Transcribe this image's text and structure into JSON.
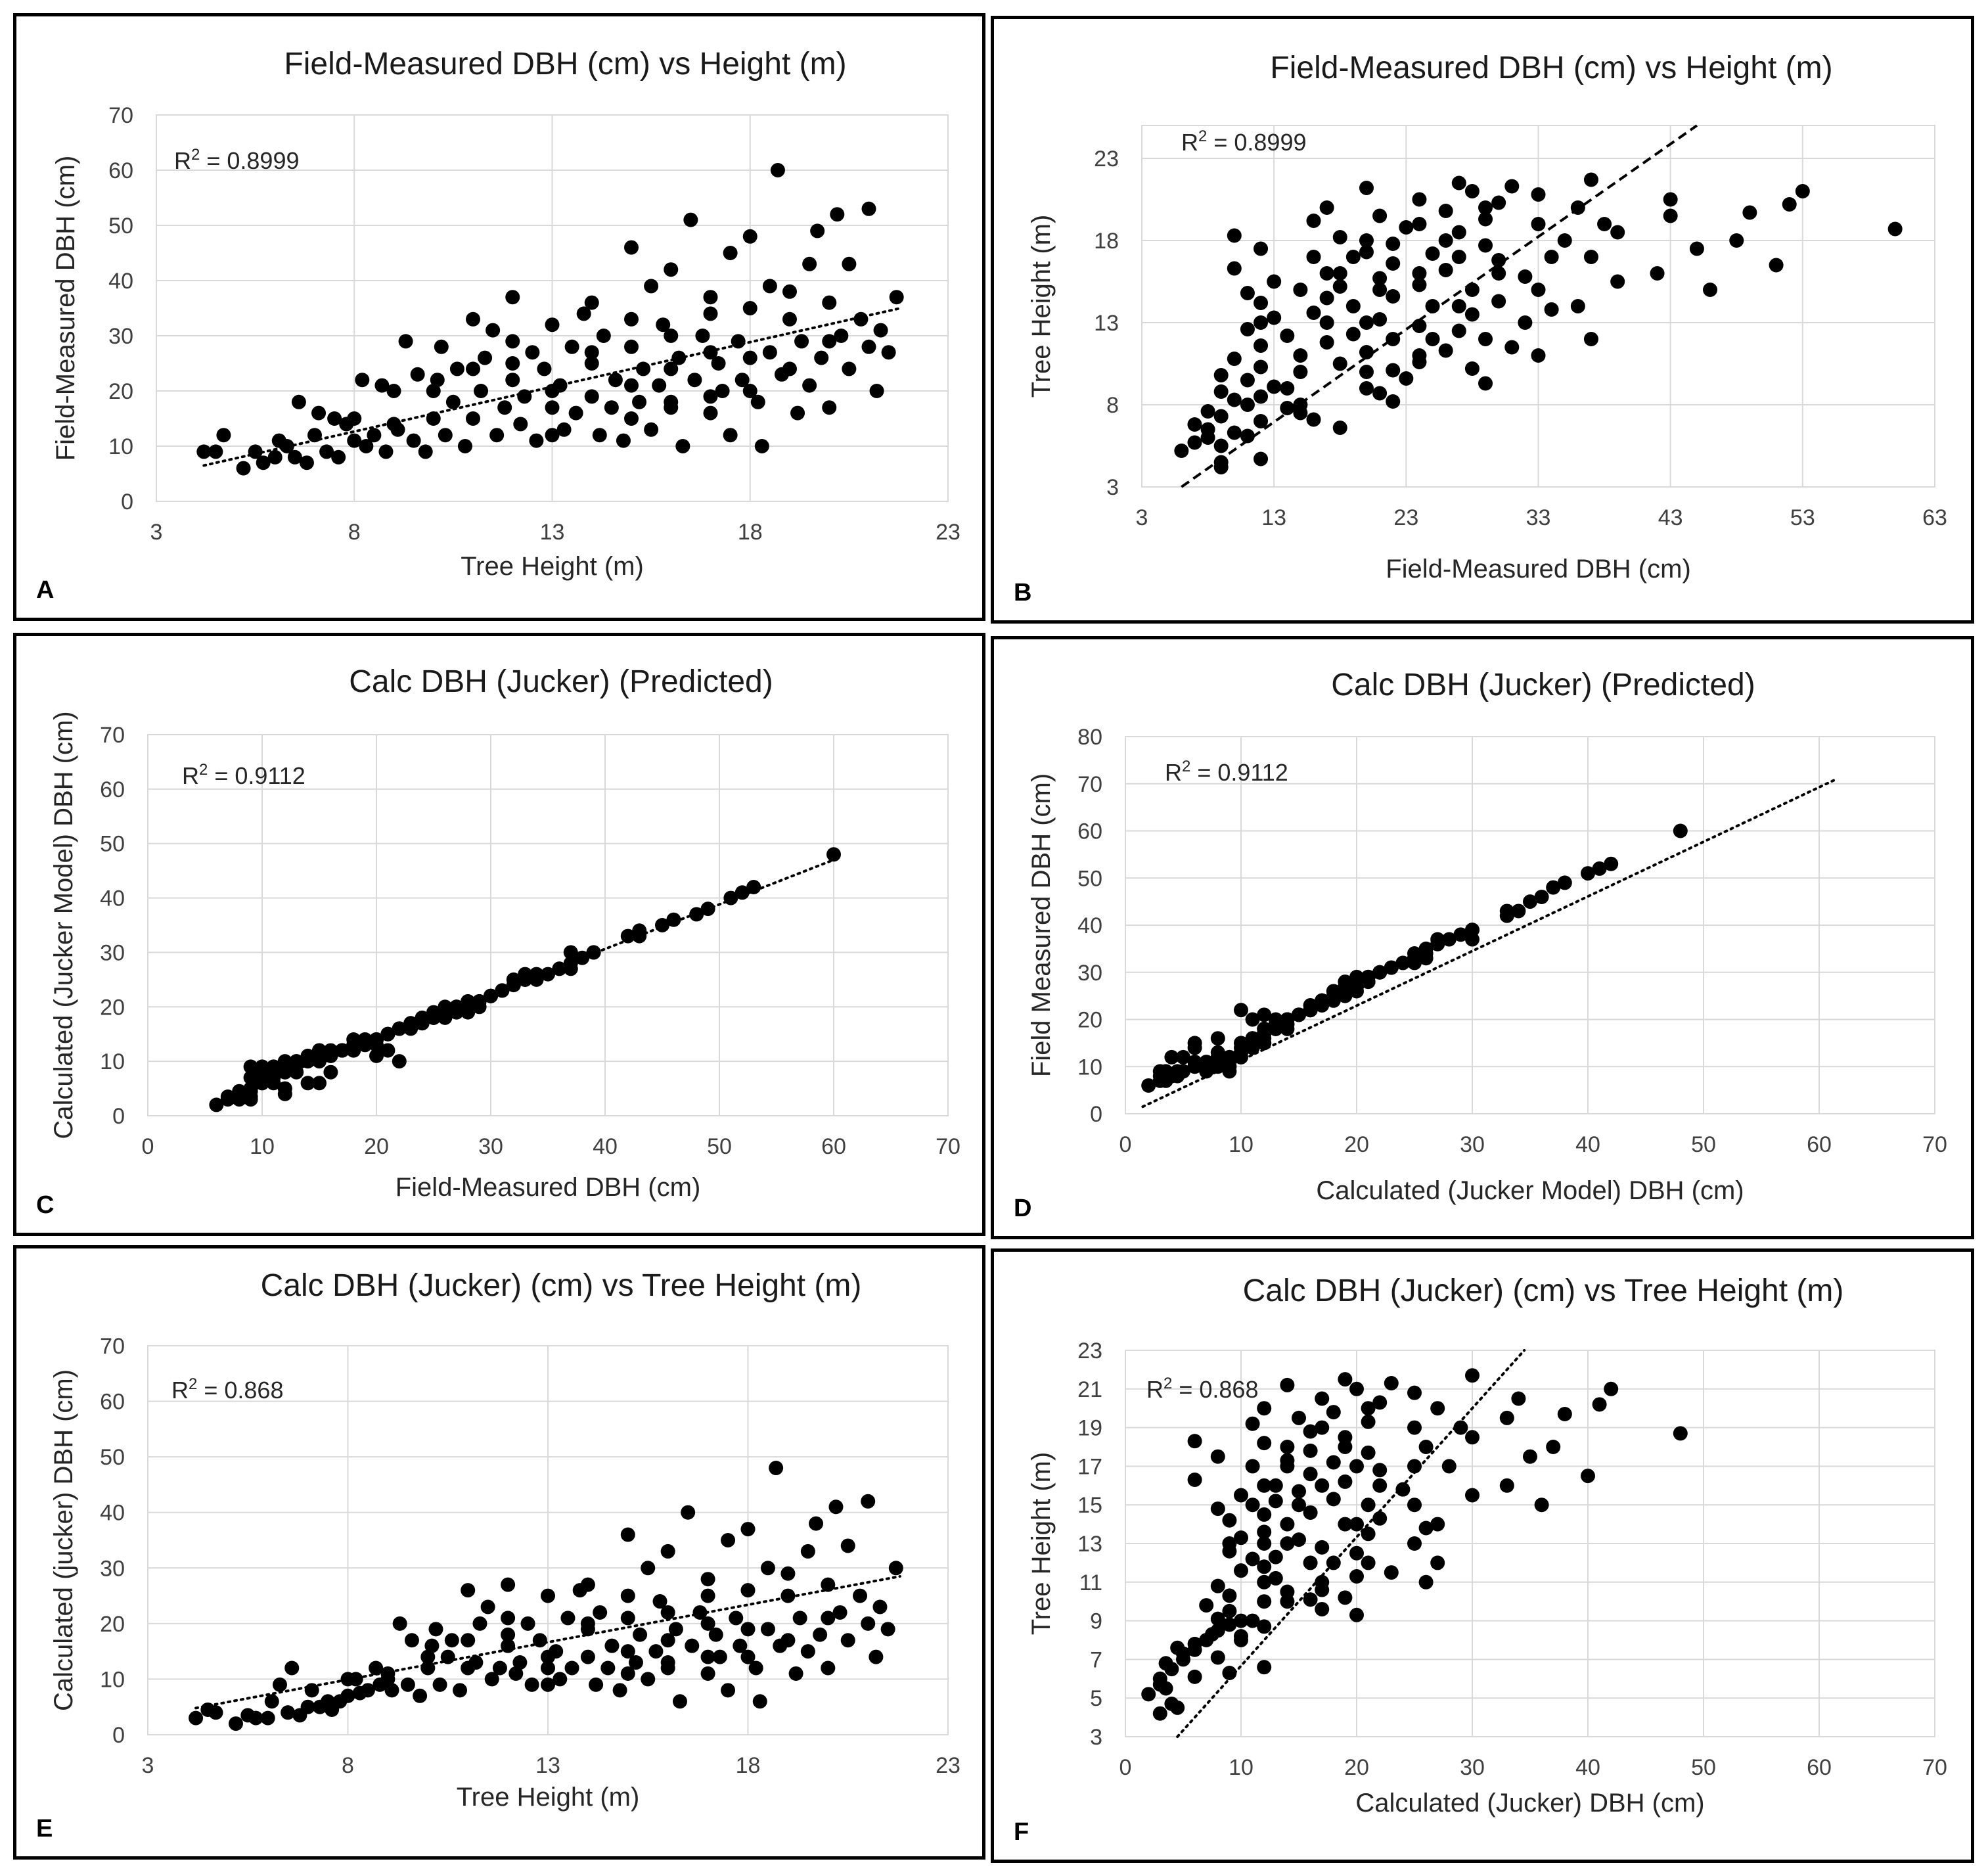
{
  "figure": {
    "panels": [
      "A",
      "B",
      "C",
      "D",
      "E",
      "F"
    ]
  },
  "chart_data": [
    {
      "panel_label": "A",
      "type": "scatter",
      "title": "Field-Measured DBH (cm) vs Height (m)",
      "xlabel": "Tree Height (m)",
      "ylabel": "Field-Measured DBH (cm)",
      "xlim": [
        3,
        23
      ],
      "ylim": [
        0,
        70
      ],
      "xticks": [
        3,
        8,
        13,
        18,
        23
      ],
      "yticks": [
        0,
        10,
        20,
        30,
        40,
        50,
        60,
        70
      ],
      "r2_label": "R",
      "r2_sup": "2",
      "r2_value": " = 0.8999",
      "grid": true,
      "trendline": {
        "style": "dotted",
        "x": [
          4.2,
          21.8
        ],
        "y": [
          6.5,
          35
        ]
      },
      "x_col": "height",
      "y_col": "field_dbh"
    },
    {
      "panel_label": "B",
      "type": "scatter",
      "title": "Field-Measured DBH (cm) vs Height (m)",
      "xlabel": "Field-Measured DBH (cm)",
      "ylabel": "Tree Height (m)",
      "xlim": [
        3,
        63
      ],
      "ylim": [
        3,
        25
      ],
      "xticks": [
        3,
        13,
        23,
        33,
        43,
        53,
        63
      ],
      "yticks": [
        3,
        8,
        13,
        18,
        23
      ],
      "r2_label": "R",
      "r2_sup": "2",
      "r2_value": " = 0.8999",
      "grid": true,
      "trendline": {
        "style": "dashed",
        "x": [
          6,
          45
        ],
        "y": [
          3,
          25
        ]
      },
      "x_col": "field_dbh",
      "y_col": "height"
    },
    {
      "panel_label": "C",
      "type": "scatter",
      "title": "Calc DBH (Jucker) (Predicted)",
      "xlabel": "Field-Measured DBH (cm)",
      "ylabel": "Calculated (Jucker Model) DBH (cm)",
      "xlim": [
        0,
        70
      ],
      "ylim": [
        0,
        70
      ],
      "xticks": [
        0,
        10,
        20,
        30,
        40,
        50,
        60,
        70
      ],
      "yticks": [
        0,
        10,
        20,
        30,
        40,
        50,
        60,
        70
      ],
      "r2_label": "R",
      "r2_sup": "2",
      "r2_value": " = 0.9112",
      "grid": true,
      "trendline": {
        "style": "dotted",
        "x": [
          6,
          60
        ],
        "y": [
          2.8,
          47
        ]
      },
      "x_col": "field_dbh",
      "y_col": "calc_dbh"
    },
    {
      "panel_label": "D",
      "type": "scatter",
      "title": "Calc DBH (Jucker) (Predicted)",
      "xlabel": "Calculated (Jucker Model) DBH (cm)",
      "ylabel": "Field Measured  DBH (cm)",
      "xlim": [
        0,
        70
      ],
      "ylim": [
        0,
        80
      ],
      "xticks": [
        0,
        10,
        20,
        30,
        40,
        50,
        60,
        70
      ],
      "yticks": [
        0,
        10,
        20,
        30,
        40,
        50,
        60,
        70,
        80
      ],
      "r2_label": "R",
      "r2_sup": "2",
      "r2_value": " = 0.9112",
      "grid": true,
      "trendline": {
        "style": "dotted",
        "x": [
          1.5,
          61.5
        ],
        "y": [
          1.5,
          71
        ]
      },
      "x_col": "calc_dbh",
      "y_col": "field_dbh"
    },
    {
      "panel_label": "E",
      "type": "scatter",
      "title": "Calc DBH (Jucker) (cm) vs Tree Height (m)",
      "xlabel": "Tree Height (m)",
      "ylabel": "Calculated (jucker) DBH (cm)",
      "xlim": [
        3,
        23
      ],
      "ylim": [
        0,
        70
      ],
      "xticks": [
        3,
        8,
        13,
        18,
        23
      ],
      "yticks": [
        0,
        10,
        20,
        30,
        40,
        50,
        60,
        70
      ],
      "r2_label": "R",
      "r2_sup": "2",
      "r2_value": " = 0.868",
      "grid": true,
      "trendline": {
        "style": "dotted",
        "x": [
          4.2,
          21.8
        ],
        "y": [
          4.8,
          28.5
        ]
      },
      "x_col": "height",
      "y_col": "calc_dbh"
    },
    {
      "panel_label": "F",
      "type": "scatter",
      "title": "Calc DBH (Jucker) (cm) vs Tree Height (m)",
      "xlabel": "Calculated (Jucker) DBH (cm)",
      "ylabel": "Tree Height (m)",
      "xlim": [
        0,
        70
      ],
      "ylim": [
        3,
        23
      ],
      "xticks": [
        0,
        10,
        20,
        30,
        40,
        50,
        60,
        70
      ],
      "yticks": [
        3,
        5,
        7,
        9,
        11,
        13,
        15,
        17,
        19,
        21,
        23
      ],
      "r2_label": "R",
      "r2_sup": "2",
      "r2_value": " = 0.868",
      "grid": true,
      "trendline": {
        "style": "dotted",
        "x": [
          4.5,
          34.5
        ],
        "y": [
          3,
          23
        ]
      },
      "x_col": "calc_dbh",
      "y_col": "height"
    }
  ],
  "trees": {
    "columns": [
      "height",
      "field_dbh",
      "calc_dbh"
    ],
    "rows": [
      [
        4.2,
        9,
        3
      ],
      [
        4.5,
        9,
        4.5
      ],
      [
        4.7,
        12,
        4
      ],
      [
        5.2,
        6,
        2
      ],
      [
        5.5,
        9,
        3.5
      ],
      [
        5.7,
        7,
        3
      ],
      [
        6,
        8,
        3
      ],
      [
        6.1,
        11,
        6
      ],
      [
        6.3,
        10,
        9
      ],
      [
        6.5,
        8,
        4
      ],
      [
        6.6,
        18,
        12
      ],
      [
        6.8,
        7,
        3.5
      ],
      [
        7,
        12,
        5
      ],
      [
        7.1,
        16,
        8
      ],
      [
        7.3,
        9,
        5
      ],
      [
        7.5,
        15,
        6
      ],
      [
        7.6,
        8,
        4.5
      ],
      [
        7.8,
        14,
        6
      ],
      [
        8,
        11,
        7
      ],
      [
        8.2,
        22,
        10
      ],
      [
        8.3,
        10,
        7.5
      ],
      [
        8.5,
        12,
        8
      ],
      [
        8.7,
        21,
        12
      ],
      [
        8.8,
        9,
        9
      ],
      [
        9,
        20,
        11
      ],
      [
        9.1,
        13,
        8
      ],
      [
        9.3,
        29,
        20
      ],
      [
        9.5,
        11,
        9
      ],
      [
        9.6,
        23,
        17
      ],
      [
        9.8,
        9,
        7
      ],
      [
        10,
        15,
        12
      ],
      [
        10.1,
        22,
        16
      ],
      [
        10.2,
        28,
        19
      ],
      [
        10.3,
        12,
        9
      ],
      [
        10.5,
        18,
        14
      ],
      [
        10.6,
        24,
        17
      ],
      [
        10.8,
        10,
        8
      ],
      [
        11,
        33,
        26
      ],
      [
        11,
        15,
        12
      ],
      [
        11.2,
        20,
        13
      ],
      [
        11.3,
        26,
        20
      ],
      [
        11.5,
        31,
        23
      ],
      [
        11.6,
        12,
        10
      ],
      [
        11.8,
        17,
        12
      ],
      [
        12,
        22,
        16
      ],
      [
        12,
        37,
        27
      ],
      [
        12.2,
        14,
        11
      ],
      [
        12.3,
        19,
        13
      ],
      [
        12.5,
        27,
        20
      ],
      [
        12.6,
        11,
        9
      ],
      [
        12.8,
        24,
        17
      ],
      [
        13,
        32,
        25
      ],
      [
        13,
        17,
        12
      ],
      [
        13.2,
        21,
        15
      ],
      [
        13.3,
        13,
        10
      ],
      [
        13.5,
        28,
        21
      ],
      [
        13.6,
        16,
        12
      ],
      [
        13.8,
        34,
        26
      ],
      [
        14,
        19,
        14
      ],
      [
        14,
        25,
        19
      ],
      [
        14.2,
        12,
        9
      ],
      [
        14.3,
        30,
        22
      ],
      [
        14.5,
        17,
        12
      ],
      [
        14.6,
        22,
        16
      ],
      [
        14.8,
        11,
        8
      ],
      [
        15,
        46,
        36
      ],
      [
        15,
        28,
        21
      ],
      [
        15.2,
        18,
        13
      ],
      [
        15.3,
        24,
        18
      ],
      [
        15.5,
        39,
        30
      ],
      [
        15.5,
        13,
        10
      ],
      [
        15.7,
        21,
        15
      ],
      [
        15.8,
        32,
        24
      ],
      [
        16,
        17,
        12
      ],
      [
        16,
        42,
        33
      ],
      [
        16.2,
        26,
        19
      ],
      [
        16.3,
        10,
        6
      ],
      [
        16.5,
        51,
        40
      ],
      [
        16.6,
        22,
        16
      ],
      [
        16.8,
        30,
        22
      ],
      [
        17,
        16,
        11
      ],
      [
        17,
        37,
        28
      ],
      [
        17.2,
        25,
        18
      ],
      [
        17.3,
        20,
        14
      ],
      [
        17.5,
        45,
        35
      ],
      [
        17.5,
        12,
        8
      ],
      [
        17.7,
        29,
        21
      ],
      [
        17.8,
        22,
        16
      ],
      [
        18,
        48,
        37
      ],
      [
        18,
        35,
        26
      ],
      [
        18.2,
        18,
        12
      ],
      [
        18.3,
        10,
        6
      ],
      [
        18.5,
        27,
        19
      ],
      [
        18.5,
        39,
        30
      ],
      [
        18.7,
        60,
        48
      ],
      [
        18.8,
        23,
        16
      ],
      [
        19,
        33,
        25
      ],
      [
        19.2,
        16,
        11
      ],
      [
        19.3,
        29,
        21
      ],
      [
        19.5,
        43,
        33
      ],
      [
        19.5,
        21,
        15
      ],
      [
        19.7,
        49,
        38
      ],
      [
        19.8,
        26,
        18
      ],
      [
        20,
        36,
        27
      ],
      [
        20,
        17,
        12
      ],
      [
        20.2,
        52,
        41
      ],
      [
        20.3,
        30,
        22
      ],
      [
        20.5,
        43,
        34
      ],
      [
        20.5,
        24,
        17
      ],
      [
        20.8,
        33,
        25
      ],
      [
        21,
        53,
        42
      ],
      [
        21,
        28,
        20
      ],
      [
        21.2,
        20,
        14
      ],
      [
        21.3,
        31,
        23
      ],
      [
        21.5,
        27,
        19
      ],
      [
        21.7,
        37,
        30
      ],
      [
        12,
        25,
        18
      ],
      [
        13,
        12,
        9
      ],
      [
        14,
        36,
        27
      ],
      [
        15,
        15,
        11
      ],
      [
        16,
        30,
        22
      ],
      [
        17,
        19,
        14
      ],
      [
        10,
        20,
        14
      ],
      [
        11,
        24,
        17
      ],
      [
        9,
        14,
        10
      ],
      [
        8,
        15,
        10
      ],
      [
        12,
        29,
        21
      ],
      [
        13,
        20,
        14
      ],
      [
        14,
        27,
        20
      ],
      [
        15,
        33,
        25
      ],
      [
        16,
        24,
        17
      ],
      [
        17,
        34,
        25
      ],
      [
        18,
        26,
        19
      ],
      [
        19,
        24,
        17
      ],
      [
        19,
        38,
        29
      ],
      [
        20,
        29,
        21
      ],
      [
        18,
        20,
        14
      ],
      [
        17,
        27,
        20
      ],
      [
        16,
        18,
        13
      ],
      [
        15,
        21,
        15
      ]
    ]
  }
}
